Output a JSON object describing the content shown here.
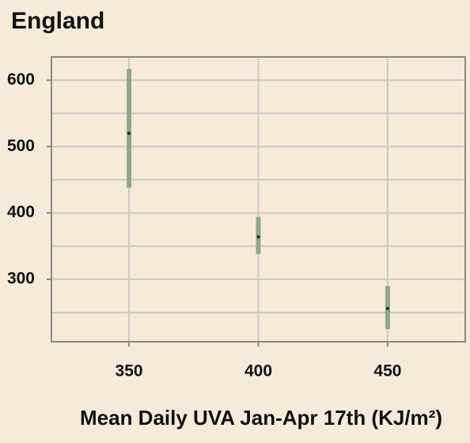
{
  "chart_data": {
    "type": "errorbar",
    "title": "England",
    "x_label": "Mean Daily UVA Jan-Apr 17th (KJ/m²)",
    "x": [
      350,
      400,
      450
    ],
    "series": [
      {
        "color": "#8ea88f",
        "point_color": "#0b3d0b",
        "values": [
          520,
          364,
          256
        ],
        "low": [
          438,
          338,
          225
        ],
        "high": [
          617,
          394,
          290
        ]
      }
    ],
    "xlim": [
      320,
      480
    ],
    "xticks": [
      350,
      400,
      450
    ],
    "ylim": [
      206,
      635
    ],
    "yticks": [
      300,
      400,
      500,
      600
    ],
    "yminor": [
      250,
      350,
      450,
      550
    ],
    "grid": true
  }
}
